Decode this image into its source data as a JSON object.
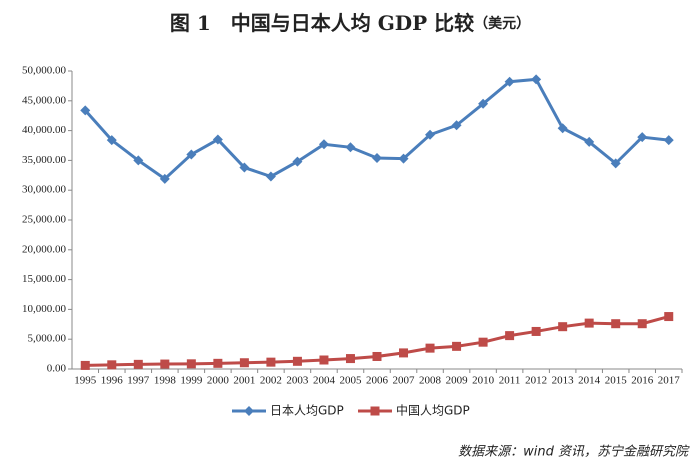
{
  "chart_data": {
    "type": "line",
    "title": "图 1　中国与日本人均 GDP 比较",
    "title_unit": "（美元）",
    "source": "数据来源：wind 资讯，苏宁金融研究院",
    "categories": [
      "1995",
      "1996",
      "1997",
      "1998",
      "1999",
      "2000",
      "2001",
      "2002",
      "2003",
      "2004",
      "2005",
      "2006",
      "2007",
      "2008",
      "2009",
      "2010",
      "2011",
      "2012",
      "2013",
      "2014",
      "2015",
      "2016",
      "2017"
    ],
    "series": [
      {
        "name": "日本人均GDP",
        "color": "#4a7ebb",
        "marker": "diamond",
        "values": [
          43400,
          38400,
          35000,
          31900,
          36000,
          38500,
          33800,
          32300,
          34800,
          37700,
          37200,
          35400,
          35300,
          39300,
          40900,
          44500,
          48200,
          48600,
          40400,
          38100,
          34500,
          38900,
          38400
        ]
      },
      {
        "name": "中国人均GDP",
        "color": "#be4b48",
        "marker": "square",
        "values": [
          600,
          700,
          780,
          830,
          870,
          950,
          1050,
          1150,
          1290,
          1510,
          1750,
          2100,
          2700,
          3500,
          3800,
          4500,
          5600,
          6300,
          7100,
          7700,
          7600,
          7600,
          8800
        ]
      }
    ],
    "ylim": [
      0,
      50000
    ],
    "yticks": [
      {
        "value": 0,
        "label": "0.00"
      },
      {
        "value": 5000,
        "label": "5,000.00"
      },
      {
        "value": 10000,
        "label": "10,000.00"
      },
      {
        "value": 15000,
        "label": "15,000.00"
      },
      {
        "value": 20000,
        "label": "20,000.00"
      },
      {
        "value": 25000,
        "label": "25,000.00"
      },
      {
        "value": 30000,
        "label": "30,000.00"
      },
      {
        "value": 35000,
        "label": "35,000.00"
      },
      {
        "value": 40000,
        "label": "40,000.00"
      },
      {
        "value": 45000,
        "label": "45,000.00"
      },
      {
        "value": 50000,
        "label": "50,000.00"
      }
    ],
    "grid": false,
    "legend": "bottom"
  }
}
